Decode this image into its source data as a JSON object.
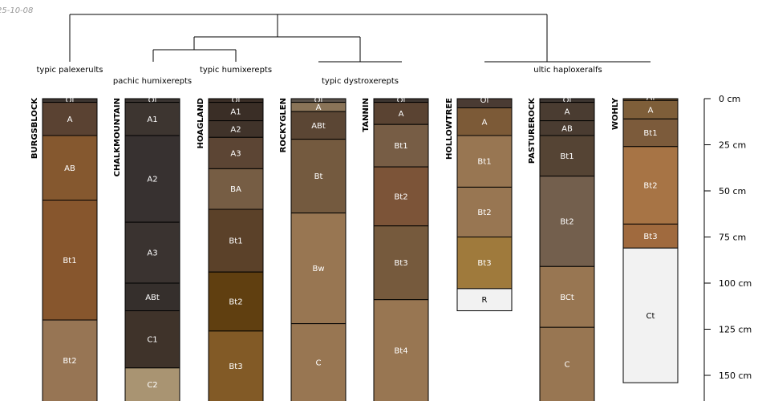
{
  "chart_data": {
    "type": "soil-profile-sketch",
    "date_label": "25-10-08",
    "depth_axis": {
      "unit": "cm",
      "range": [
        0,
        165
      ],
      "ticks": [
        0,
        25,
        50,
        75,
        100,
        125,
        150
      ],
      "tick_labels": [
        "0 cm",
        "25 cm",
        "50 cm",
        "75 cm",
        "100 cm",
        "125 cm",
        "150 cm"
      ]
    },
    "dendrogram": {
      "group_labels": [
        {
          "text": "typic palexerults",
          "member": "burgsblock"
        },
        {
          "text": "pachic humixerepts",
          "member": "chalkmountain"
        },
        {
          "text": "typic humixerepts",
          "member": "hoagland"
        },
        {
          "text": "typic dystroxerepts",
          "member": "rockyglen"
        },
        {
          "text": "ultic haploxeralfs",
          "member": "hollowtree"
        }
      ]
    },
    "profiles": [
      {
        "name": "BURGSBLOCK",
        "horizons": [
          {
            "name": "Oi",
            "top": 0,
            "bottom": 2,
            "color": "#3d3530"
          },
          {
            "name": "A",
            "top": 2,
            "bottom": 20,
            "color": "#5a4232"
          },
          {
            "name": "AB",
            "top": 20,
            "bottom": 55,
            "color": "#85582f"
          },
          {
            "name": "Bt1",
            "top": 55,
            "bottom": 120,
            "color": "#87562d"
          },
          {
            "name": "Bt2",
            "top": 120,
            "bottom": 170,
            "color": "#977554"
          }
        ]
      },
      {
        "name": "CHALKMOUNTAIN",
        "horizons": [
          {
            "name": "Oi",
            "top": 0,
            "bottom": 2,
            "color": "#3a3431"
          },
          {
            "name": "A1",
            "top": 2,
            "bottom": 20,
            "color": "#3d3530"
          },
          {
            "name": "A2",
            "top": 20,
            "bottom": 67,
            "color": "#373130"
          },
          {
            "name": "A3",
            "top": 67,
            "bottom": 100,
            "color": "#3a3330"
          },
          {
            "name": "ABt",
            "top": 100,
            "bottom": 115,
            "color": "#352f2c"
          },
          {
            "name": "C1",
            "top": 115,
            "bottom": 146,
            "color": "#3f332a"
          },
          {
            "name": "C2",
            "top": 146,
            "bottom": 170,
            "color": "#a99472"
          }
        ]
      },
      {
        "name": "HOAGLAND",
        "horizons": [
          {
            "name": "Oi",
            "top": 0,
            "bottom": 2,
            "color": "#3a2e26"
          },
          {
            "name": "A1",
            "top": 2,
            "bottom": 12,
            "color": "#3a2e26"
          },
          {
            "name": "A2",
            "top": 12,
            "bottom": 21,
            "color": "#40332a"
          },
          {
            "name": "A3",
            "top": 21,
            "bottom": 38,
            "color": "#5c4534"
          },
          {
            "name": "BA",
            "top": 38,
            "bottom": 60,
            "color": "#765d44"
          },
          {
            "name": "Bt1",
            "top": 60,
            "bottom": 94,
            "color": "#5b4129"
          },
          {
            "name": "Bt2",
            "top": 94,
            "bottom": 126,
            "color": "#603f10"
          },
          {
            "name": "Bt3",
            "top": 126,
            "bottom": 170,
            "color": "#825a26"
          }
        ]
      },
      {
        "name": "ROCKYGLEN",
        "horizons": [
          {
            "name": "Oi",
            "top": 0,
            "bottom": 2,
            "color": "#5a524a"
          },
          {
            "name": "A",
            "top": 2,
            "bottom": 7,
            "color": "#8a7458"
          },
          {
            "name": "ABt",
            "top": 7,
            "bottom": 22,
            "color": "#5b4634"
          },
          {
            "name": "Bt",
            "top": 22,
            "bottom": 62,
            "color": "#745a3f"
          },
          {
            "name": "Bw",
            "top": 62,
            "bottom": 122,
            "color": "#987652"
          },
          {
            "name": "C",
            "top": 122,
            "bottom": 170,
            "color": "#987652"
          }
        ]
      },
      {
        "name": "TANNIN",
        "horizons": [
          {
            "name": "Oi",
            "top": 0,
            "bottom": 2,
            "color": "#3d3530"
          },
          {
            "name": "A",
            "top": 2,
            "bottom": 14,
            "color": "#5a4332"
          },
          {
            "name": "Bt1",
            "top": 14,
            "bottom": 37,
            "color": "#775d45"
          },
          {
            "name": "Bt2",
            "top": 37,
            "bottom": 69,
            "color": "#7c5438"
          },
          {
            "name": "Bt3",
            "top": 69,
            "bottom": 109,
            "color": "#765a3d"
          },
          {
            "name": "Bt4",
            "top": 109,
            "bottom": 170,
            "color": "#987652"
          }
        ]
      },
      {
        "name": "HOLLOWTREE",
        "horizons": [
          {
            "name": "Oi",
            "top": 0,
            "bottom": 5,
            "color": "#4a3b33"
          },
          {
            "name": "A",
            "top": 5,
            "bottom": 20,
            "color": "#7c5a37"
          },
          {
            "name": "Bt1",
            "top": 20,
            "bottom": 48,
            "color": "#987652"
          },
          {
            "name": "Bt2",
            "top": 48,
            "bottom": 75,
            "color": "#987652"
          },
          {
            "name": "Bt3",
            "top": 75,
            "bottom": 103,
            "color": "#9f7a3c"
          },
          {
            "name": "R",
            "top": 103,
            "bottom": 115,
            "color": "#f2f2f2"
          }
        ]
      },
      {
        "name": "PASTUREROCK",
        "horizons": [
          {
            "name": "Oi",
            "top": 0,
            "bottom": 2,
            "color": "#3d3530"
          },
          {
            "name": "A",
            "top": 2,
            "bottom": 12,
            "color": "#4a3c31"
          },
          {
            "name": "AB",
            "top": 12,
            "bottom": 20,
            "color": "#4a3c31"
          },
          {
            "name": "Bt1",
            "top": 20,
            "bottom": 42,
            "color": "#554434"
          },
          {
            "name": "Bt2",
            "top": 42,
            "bottom": 91,
            "color": "#735f4d"
          },
          {
            "name": "BCt",
            "top": 91,
            "bottom": 124,
            "color": "#987652"
          },
          {
            "name": "C",
            "top": 124,
            "bottom": 170,
            "color": "#987652"
          }
        ]
      },
      {
        "name": "WOHLY",
        "horizons": [
          {
            "name": "Oi",
            "top": 0,
            "bottom": 1,
            "color": "#6b5030"
          },
          {
            "name": "A",
            "top": 1,
            "bottom": 11,
            "color": "#7e5e39"
          },
          {
            "name": "Bt1",
            "top": 11,
            "bottom": 26,
            "color": "#7c5b3b"
          },
          {
            "name": "Bt2",
            "top": 26,
            "bottom": 68,
            "color": "#a77445"
          },
          {
            "name": "Bt3",
            "top": 68,
            "bottom": 81,
            "color": "#a06a3e"
          },
          {
            "name": "Ct",
            "top": 81,
            "bottom": 154,
            "color": "#f2f2f2"
          }
        ]
      }
    ]
  }
}
